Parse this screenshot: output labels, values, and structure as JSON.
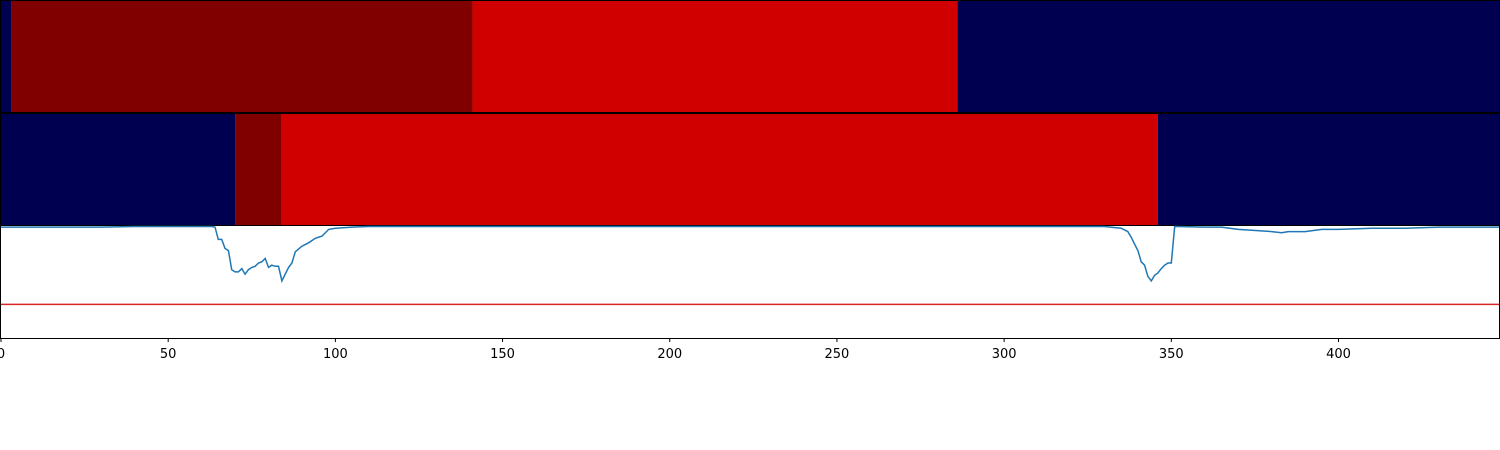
{
  "chart_data": {
    "type": "heatmap",
    "title": "",
    "xlabel": "",
    "ylabel": "",
    "xlim": [
      0,
      448
    ],
    "grid": false,
    "legend": "none",
    "x_ticks": [
      0,
      50,
      100,
      150,
      200,
      250,
      300,
      350,
      400
    ],
    "x_tick_labels": [
      "0",
      "50",
      "100",
      "150",
      "200",
      "250",
      "300",
      "350",
      "400"
    ],
    "colors": {
      "background_class": "#000050",
      "class_dark": "#800000",
      "class_bright": "#d10000",
      "probability_line": "#1f77b4",
      "threshold_line": "#d62728"
    },
    "segment_rows": [
      {
        "segments": [
          {
            "start": 0,
            "end": 3,
            "color": "#000050"
          },
          {
            "start": 3,
            "end": 141,
            "color": "#800000"
          },
          {
            "start": 141,
            "end": 286,
            "color": "#d10000"
          },
          {
            "start": 286,
            "end": 448,
            "color": "#000050"
          }
        ]
      },
      {
        "segments": [
          {
            "start": 0,
            "end": 70,
            "color": "#000050"
          },
          {
            "start": 70,
            "end": 84,
            "color": "#800000"
          },
          {
            "start": 84,
            "end": 346,
            "color": "#d10000"
          },
          {
            "start": 346,
            "end": 448,
            "color": "#000050"
          }
        ]
      }
    ],
    "line_panel": {
      "ylim": [
        0,
        1
      ],
      "threshold": 0.3,
      "x": [
        0,
        30,
        40,
        60,
        63,
        64,
        65,
        66,
        67,
        68,
        68.5,
        69,
        70,
        71,
        72,
        73,
        74,
        75,
        76,
        77,
        78,
        79,
        80,
        81,
        82,
        83,
        84,
        85,
        86,
        87,
        88,
        90,
        92,
        94,
        96,
        98,
        100,
        105,
        110,
        150,
        200,
        250,
        300,
        330,
        335,
        337,
        338,
        339,
        340,
        341,
        342,
        343,
        344,
        345,
        346,
        347,
        348,
        349,
        350,
        351,
        352,
        360,
        365,
        370,
        380,
        383,
        385,
        390,
        395,
        400,
        410,
        420,
        430,
        440,
        448
      ],
      "y": [
        0.99,
        0.99,
        1.0,
        1.0,
        1.0,
        0.99,
        0.88,
        0.88,
        0.8,
        0.78,
        0.7,
        0.61,
        0.59,
        0.59,
        0.62,
        0.57,
        0.61,
        0.63,
        0.64,
        0.67,
        0.68,
        0.71,
        0.63,
        0.65,
        0.64,
        0.64,
        0.51,
        0.57,
        0.63,
        0.67,
        0.77,
        0.82,
        0.85,
        0.89,
        0.91,
        0.97,
        0.98,
        0.99,
        1.0,
        1.0,
        1.0,
        1.0,
        1.0,
        1.0,
        0.98,
        0.95,
        0.9,
        0.84,
        0.78,
        0.68,
        0.65,
        0.55,
        0.51,
        0.56,
        0.58,
        0.62,
        0.65,
        0.67,
        0.67,
        1.0,
        1.0,
        0.99,
        0.99,
        0.97,
        0.95,
        0.94,
        0.95,
        0.95,
        0.97,
        0.97,
        0.98,
        0.98,
        0.99,
        0.99,
        0.99
      ]
    }
  }
}
